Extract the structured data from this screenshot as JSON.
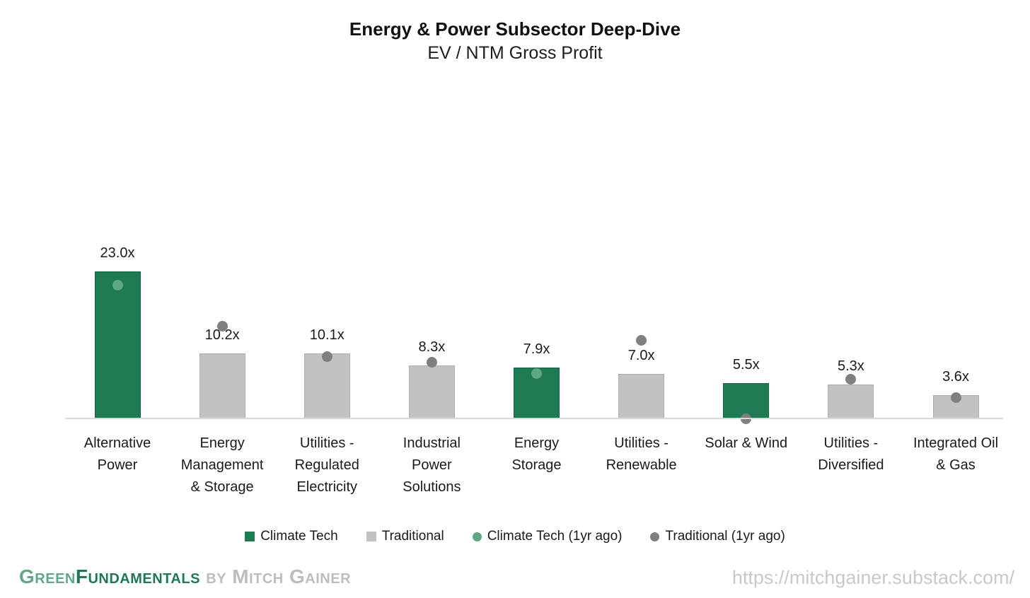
{
  "chart_data": {
    "type": "bar",
    "title": "Energy & Power Subsector Deep-Dive",
    "subtitle": "EV / NTM Gross Profit",
    "value_suffix": "x",
    "ylim": [
      0,
      25
    ],
    "grid": false,
    "legend_position": "bottom",
    "categories": [
      "Alternative Power",
      "Energy Management & Storage",
      "Utilities - Regulated Electricity",
      "Industrial Power Solutions",
      "Energy Storage",
      "Utilities - Renewable",
      "Solar & Wind",
      "Utilities - Diversified",
      "Integrated Oil & Gas"
    ],
    "bars": [
      {
        "category": "Alternative Power",
        "category_label": "Alternative\nPower",
        "series": "climate",
        "value": 23.0,
        "value_label": "23.0x",
        "dot_series": "climate_1yr_ago",
        "dot_value": 20.8
      },
      {
        "category": "Energy Management & Storage",
        "category_label": "Energy\nManagement\n& Storage",
        "series": "traditional",
        "value": 10.2,
        "value_label": "10.2x",
        "dot_series": "traditional_1yr_ago",
        "dot_value": 14.4
      },
      {
        "category": "Utilities - Regulated Electricity",
        "category_label": "Utilities -\nRegulated\nElectricity",
        "series": "traditional",
        "value": 10.1,
        "value_label": "10.1x",
        "dot_series": "traditional_1yr_ago",
        "dot_value": 9.6
      },
      {
        "category": "Industrial Power Solutions",
        "category_label": "Industrial\nPower\nSolutions",
        "series": "traditional",
        "value": 8.3,
        "value_label": "8.3x",
        "dot_series": "traditional_1yr_ago",
        "dot_value": 8.8
      },
      {
        "category": "Energy Storage",
        "category_label": "Energy\nStorage",
        "series": "climate",
        "value": 7.9,
        "value_label": "7.9x",
        "dot_series": "climate_1yr_ago",
        "dot_value": 7.0
      },
      {
        "category": "Utilities - Renewable",
        "category_label": "Utilities -\nRenewable",
        "series": "traditional",
        "value": 7.0,
        "value_label": "7.0x",
        "dot_series": "traditional_1yr_ago",
        "dot_value": 12.2
      },
      {
        "category": "Solar & Wind",
        "category_label": "Solar & Wind",
        "series": "climate",
        "value": 5.5,
        "value_label": "5.5x",
        "dot_series": "traditional_1yr_ago",
        "dot_value": 0.0
      },
      {
        "category": "Utilities - Diversified",
        "category_label": "Utilities -\nDiversified",
        "series": "traditional",
        "value": 5.3,
        "value_label": "5.3x",
        "dot_series": "traditional_1yr_ago",
        "dot_value": 6.1
      },
      {
        "category": "Integrated Oil & Gas",
        "category_label": "Integrated Oil\n& Gas",
        "series": "traditional",
        "value": 3.6,
        "value_label": "3.6x",
        "dot_series": "traditional_1yr_ago",
        "dot_value": 3.2
      }
    ],
    "legend": [
      {
        "label": "Climate Tech",
        "marker": "square",
        "series": "climate"
      },
      {
        "label": "Traditional",
        "marker": "square",
        "series": "traditional"
      },
      {
        "label": "Climate Tech (1yr ago)",
        "marker": "circle",
        "series": "climate_1yr_ago"
      },
      {
        "label": "Traditional (1yr ago)",
        "marker": "circle",
        "series": "traditional_1yr_ago"
      }
    ]
  },
  "colors": {
    "climate": "#1E7A52",
    "climate_border": "#176245",
    "traditional": "#C2C2C2",
    "traditional_border": "#ADADAD",
    "climate_dot": "#5FA884",
    "traditional_dot": "#7F7F7F",
    "axis": "#D9D9D9",
    "brand_light": "#63A886",
    "brand_dark": "#1D7A50",
    "brand_gray": "#BDBDBD",
    "url_gray": "#C8C8C8"
  },
  "footer": {
    "brand_first": "Green",
    "brand_second": "Fundamentals",
    "brand_rest": " by Mitch Gainer",
    "url": "https://mitchgainer.substack.com/"
  }
}
